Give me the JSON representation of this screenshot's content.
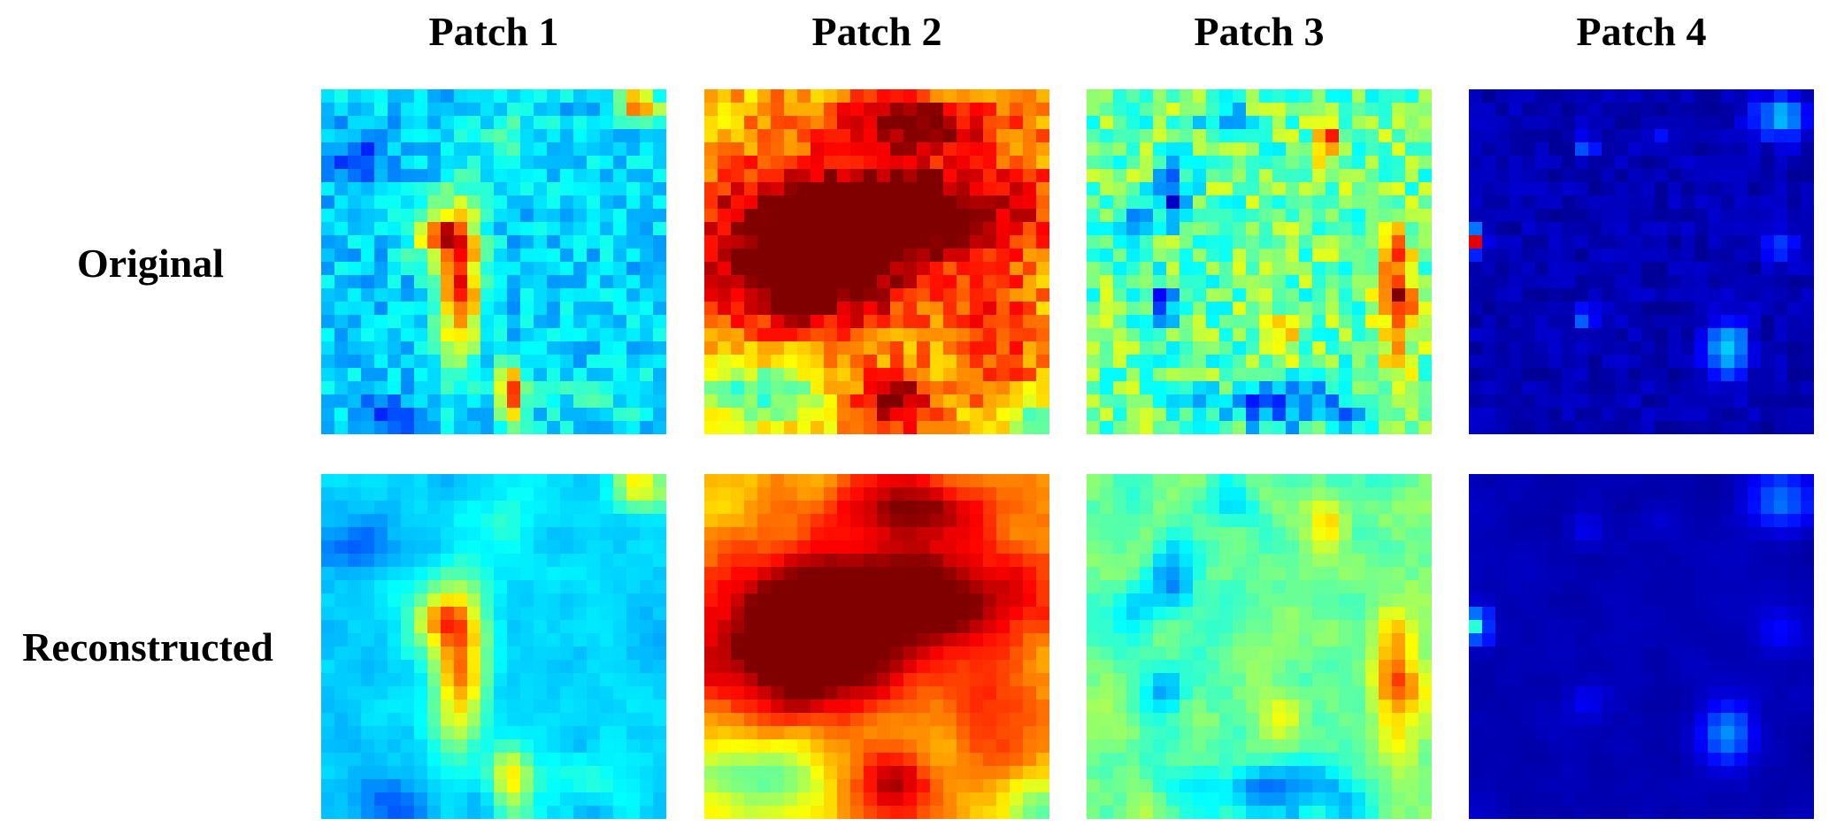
{
  "figure": {
    "column_titles": [
      "Patch 1",
      "Patch 2",
      "Patch 3",
      "Patch 4"
    ],
    "row_labels": [
      "Original",
      "Reconstructed"
    ],
    "colormap": "jet",
    "colormap_stops": [
      "#00008F",
      "#0000FF",
      "#00FFFF",
      "#FFFF00",
      "#FF0000",
      "#800000"
    ]
  }
}
